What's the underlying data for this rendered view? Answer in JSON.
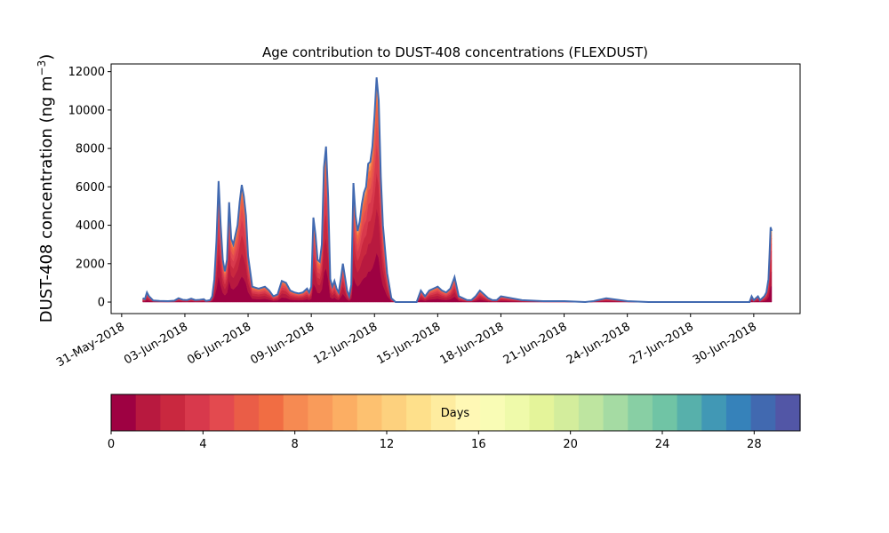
{
  "chart_data": {
    "type": "area",
    "title": "Age contribution to DUST-408 concentrations (FLEXDUST)",
    "ylabel_main": "DUST-408 concentration (ng m",
    "ylabel_sup": "−3",
    "ylabel_end": ")",
    "xlabel": "",
    "ylim": [
      -600,
      12400
    ],
    "xlim_days": [
      -0.5,
      32.2
    ],
    "yticks": [
      0,
      2000,
      4000,
      6000,
      8000,
      10000,
      12000
    ],
    "ytick_labels": [
      "0",
      "2000",
      "4000",
      "6000",
      "8000",
      "10000",
      "12000"
    ],
    "xticks": [
      0,
      3,
      6,
      9,
      12,
      15,
      18,
      21,
      24,
      27,
      30
    ],
    "xtick_labels": [
      "31-May-2018",
      "03-Jun-2018",
      "06-Jun-2018",
      "09-Jun-2018",
      "12-Jun-2018",
      "15-Jun-2018",
      "18-Jun-2018",
      "21-Jun-2018",
      "24-Jun-2018",
      "27-Jun-2018",
      "30-Jun-2018"
    ],
    "total_series": {
      "x": [
        1.0,
        1.1,
        1.2,
        1.3,
        1.5,
        1.8,
        2.2,
        2.5,
        2.7,
        2.9,
        3.1,
        3.3,
        3.5,
        3.7,
        3.9,
        4.0,
        4.2,
        4.3,
        4.4,
        4.5,
        4.6,
        4.7,
        4.8,
        4.9,
        5.0,
        5.1,
        5.2,
        5.3,
        5.4,
        5.5,
        5.6,
        5.7,
        5.8,
        5.9,
        6.0,
        6.2,
        6.5,
        6.8,
        7.0,
        7.2,
        7.4,
        7.6,
        7.8,
        8.0,
        8.2,
        8.4,
        8.6,
        8.8,
        8.9,
        9.0,
        9.1,
        9.2,
        9.3,
        9.4,
        9.5,
        9.6,
        9.7,
        9.8,
        9.9,
        10.0,
        10.1,
        10.2,
        10.3,
        10.4,
        10.5,
        10.6,
        10.7,
        10.8,
        10.9,
        11.0,
        11.1,
        11.2,
        11.3,
        11.4,
        11.5,
        11.6,
        11.7,
        11.8,
        11.9,
        12.0,
        12.1,
        12.2,
        12.3,
        12.4,
        12.6,
        12.8,
        13.0,
        13.2,
        13.6,
        14.0,
        14.1,
        14.2,
        14.4,
        14.6,
        14.8,
        15.0,
        15.2,
        15.4,
        15.6,
        15.8,
        15.9,
        16.0,
        16.2,
        16.4,
        16.6,
        16.8,
        17.0,
        17.2,
        17.4,
        17.6,
        17.8,
        18.0,
        19.0,
        20.0,
        21.0,
        22.0,
        22.4,
        22.6,
        22.8,
        23.0,
        24.0,
        25.0,
        26.0,
        27.0,
        28.0,
        29.0,
        29.6,
        29.8,
        29.9,
        30.0,
        30.1,
        30.2,
        30.3,
        30.4,
        30.5,
        30.6,
        30.7,
        30.75,
        30.8,
        30.85
      ],
      "y": [
        200,
        150,
        500,
        300,
        80,
        60,
        50,
        70,
        200,
        120,
        100,
        180,
        100,
        120,
        150,
        60,
        100,
        300,
        1200,
        3200,
        6300,
        4000,
        2200,
        1600,
        2200,
        5200,
        3300,
        3000,
        3500,
        4000,
        5200,
        6100,
        5500,
        4500,
        2400,
        800,
        700,
        800,
        600,
        300,
        400,
        1100,
        1000,
        600,
        500,
        450,
        500,
        700,
        500,
        800,
        4400,
        3500,
        2200,
        2100,
        3000,
        7000,
        8100,
        5500,
        1200,
        800,
        1100,
        700,
        500,
        1200,
        2000,
        1300,
        600,
        300,
        900,
        6200,
        4500,
        3700,
        4200,
        5100,
        5700,
        6000,
        7200,
        7300,
        8100,
        9700,
        11700,
        10500,
        6500,
        4000,
        1500,
        200,
        0,
        0,
        0,
        0,
        300,
        600,
        300,
        600,
        700,
        800,
        600,
        500,
        700,
        1300,
        800,
        300,
        200,
        100,
        100,
        300,
        600,
        400,
        200,
        100,
        100,
        300,
        100,
        50,
        50,
        0,
        50,
        100,
        150,
        200,
        50,
        0,
        0,
        0,
        0,
        0,
        0,
        0,
        300,
        100,
        200,
        300,
        100,
        200,
        300,
        500,
        1200,
        2500,
        3900,
        3700
      ]
    },
    "layer_fractions": [
      0.22,
      0.2,
      0.16,
      0.13,
      0.1,
      0.08,
      0.05,
      0.03,
      0.015,
      0.01,
      0.005
    ],
    "colorbar": {
      "label": "Days",
      "min": 0,
      "max": 30,
      "ticks": [
        0,
        4,
        8,
        12,
        16,
        20,
        24,
        28
      ],
      "tick_labels": [
        "0",
        "4",
        "8",
        "12",
        "16",
        "20",
        "24",
        "28"
      ],
      "colors": [
        "#9e0142",
        "#b8193f",
        "#c9283f",
        "#d8394c",
        "#e34a4f",
        "#ea5d47",
        "#f16d43",
        "#f68a52",
        "#f99b5a",
        "#fcae63",
        "#fdc170",
        "#fdd17e",
        "#fee08b",
        "#feec9f",
        "#fff8b5",
        "#f9fcb5",
        "#effaaa",
        "#e4f49a",
        "#d3ed9c",
        "#bee5a0",
        "#a5dba3",
        "#88cfa4",
        "#70c4a5",
        "#57b0ab",
        "#4198b5",
        "#3682ba",
        "#4169b0",
        "#5256a6"
      ],
      "outline_color": "#4169b0"
    }
  }
}
